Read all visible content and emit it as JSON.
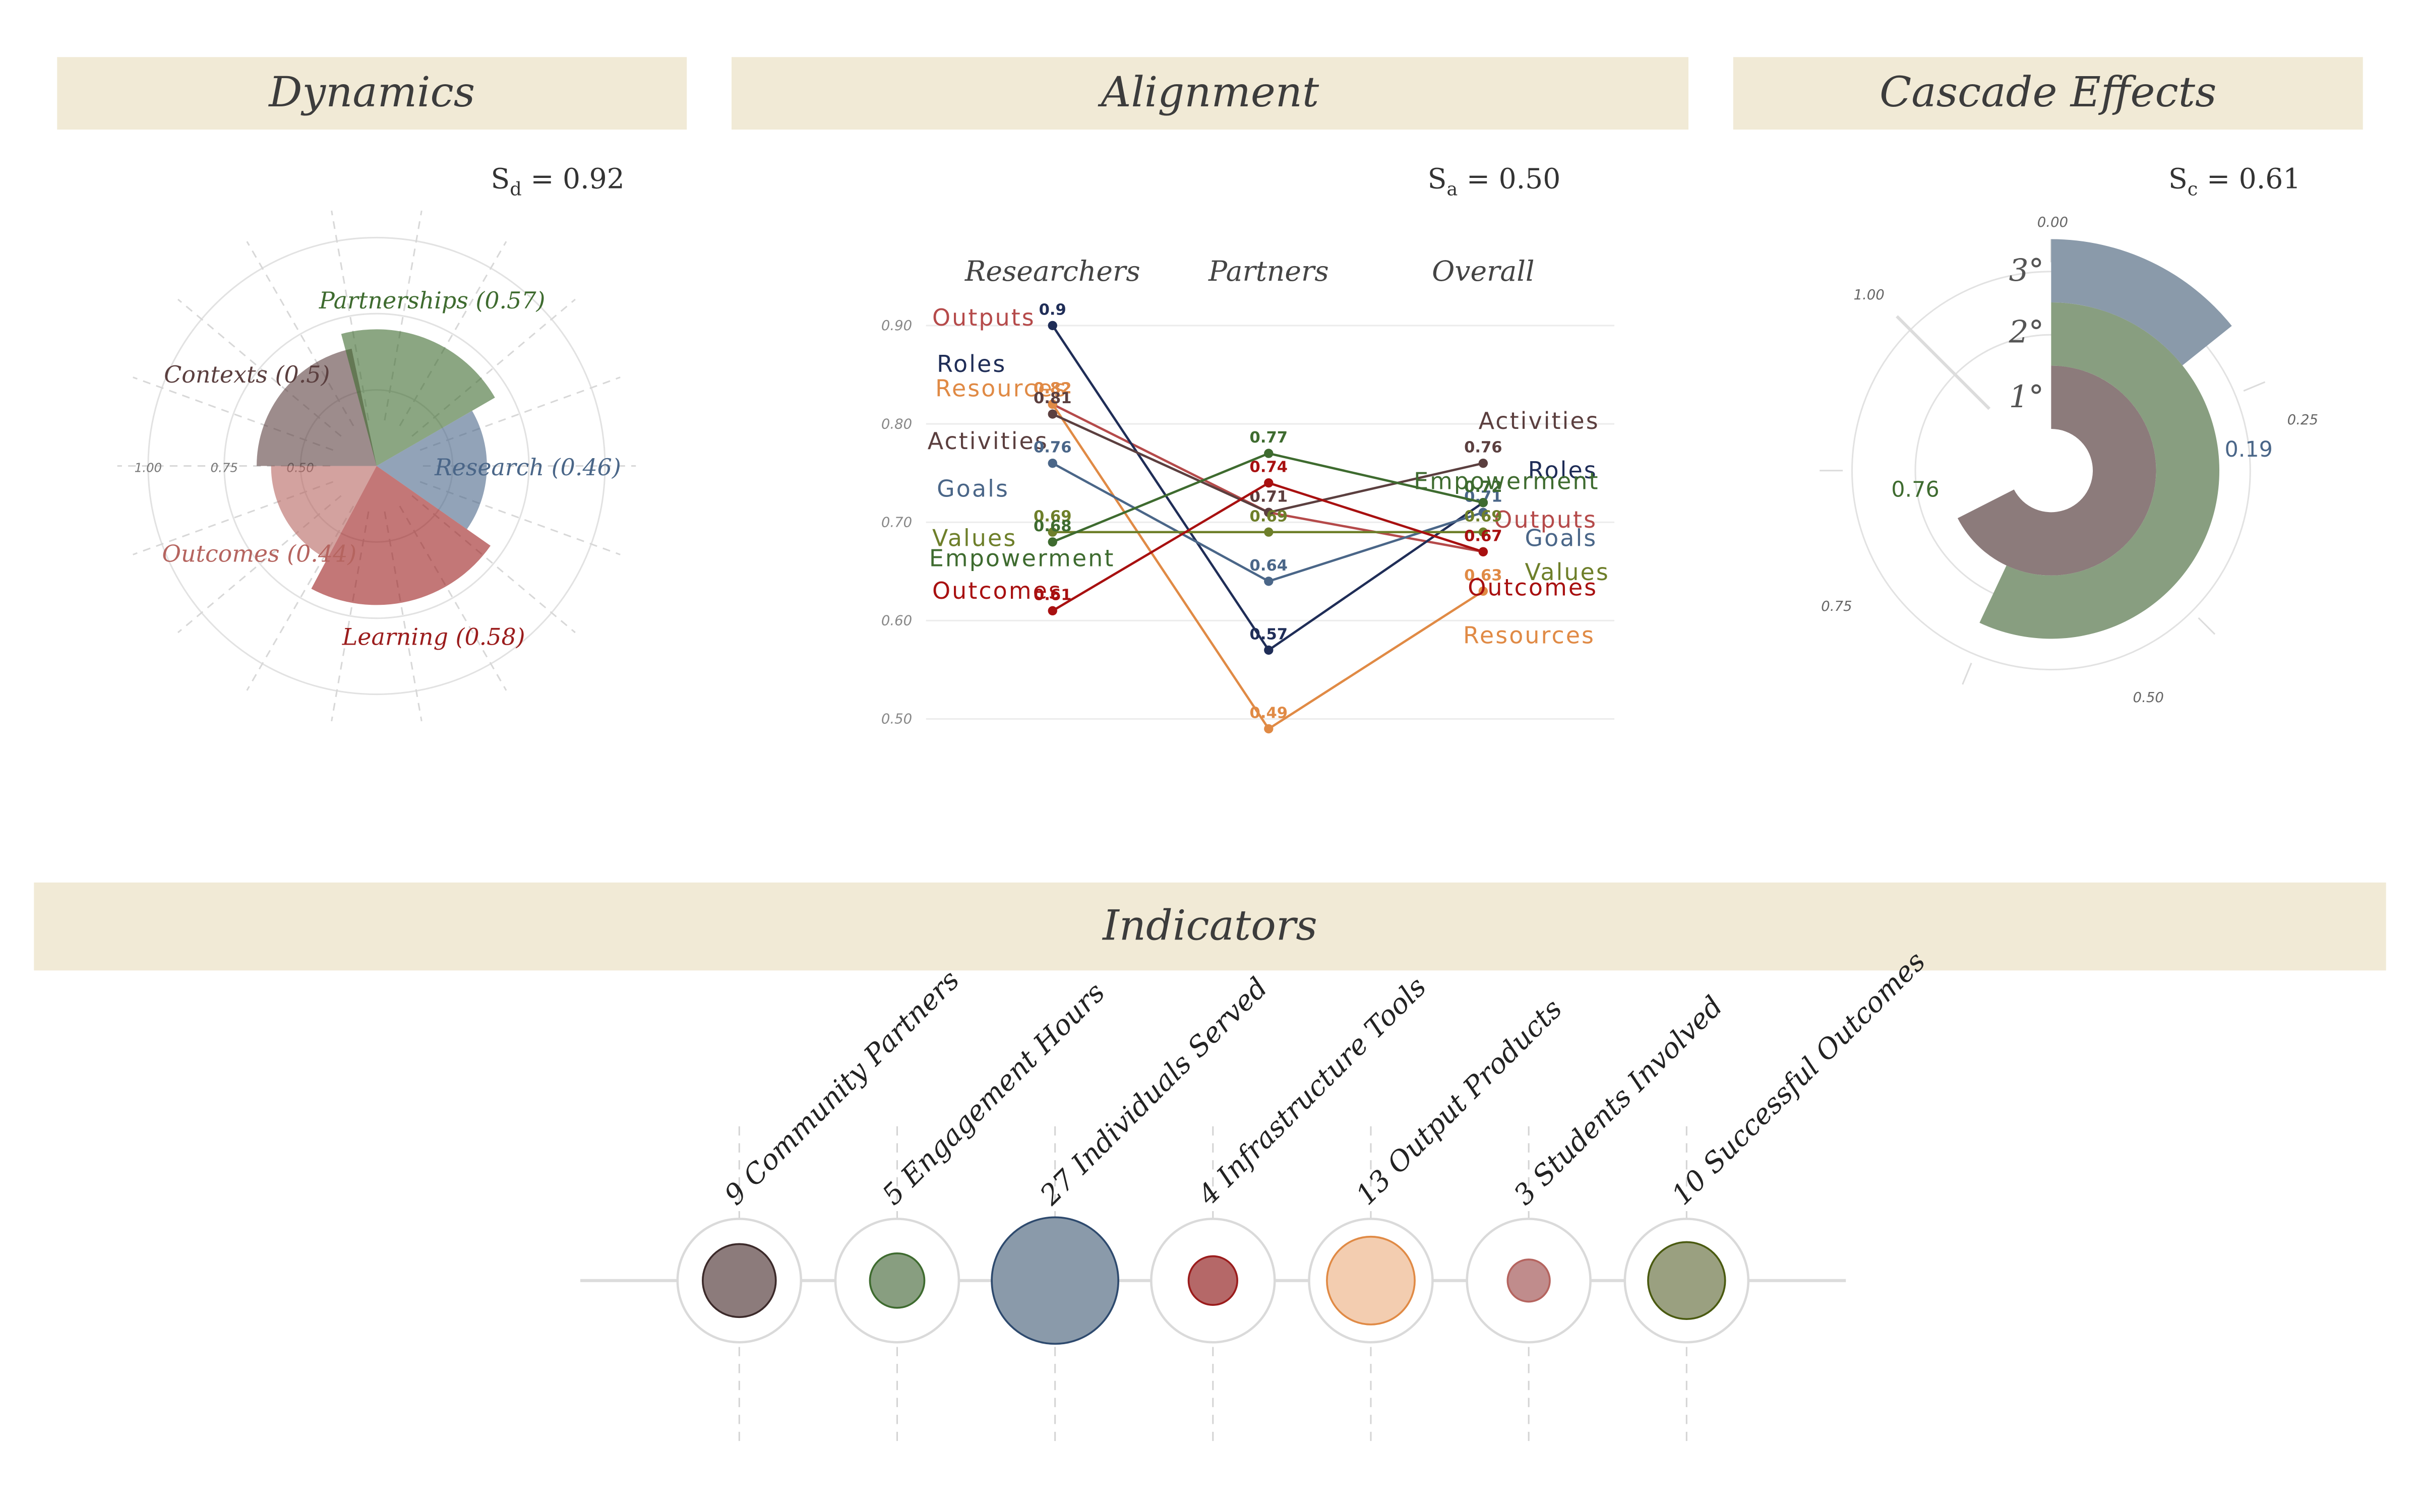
{
  "panels": {
    "dynamics": {
      "title": "Dynamics",
      "score_symbol": "S",
      "score_sub": "d",
      "score_value": "= 0.92"
    },
    "alignment": {
      "title": "Alignment",
      "score_symbol": "S",
      "score_sub": "a",
      "score_value": "= 0.50"
    },
    "cascade": {
      "title": "Cascade Effects",
      "score_symbol": "S",
      "score_sub": "c",
      "score_value": "= 0.61"
    },
    "indicators": {
      "title": "Indicators"
    }
  },
  "colors": {
    "header_bg": "#f1ead6",
    "Contexts": "#5b3f3f",
    "Partnerships": "#3e6b2f",
    "Research": "#4a6688",
    "Learning": "#9b1c1c",
    "Outcomes": "#b5645f",
    "Roles": "#1f2d57",
    "Resources": "#e08a45",
    "Activities": "#5b3f3f",
    "Goals": "#4a6688",
    "Values": "#6e7f2a",
    "Empowerment": "#3e6b2f",
    "Outputs": "#b54a4a",
    "Outcomes_line": "#a81010"
  },
  "chart_data": [
    {
      "type": "polar-bar",
      "name": "dynamics",
      "categories": [
        "Contexts",
        "Partnerships",
        "Research",
        "Learning",
        "Outcomes"
      ],
      "values": [
        0.5,
        0.57,
        0.46,
        0.58,
        0.44
      ],
      "labels": [
        "Contexts (0.5)",
        "Partnerships (0.57)",
        "Research (0.46)",
        "Learning (0.58)",
        "Outcomes (0.44)"
      ],
      "radial_ticks": [
        "1.00",
        "0.75",
        "0.50"
      ],
      "rlim": [
        0,
        1
      ]
    },
    {
      "type": "line",
      "name": "alignment",
      "categories": [
        "Researchers",
        "Partners",
        "Overall"
      ],
      "ylim": [
        0.5,
        0.9
      ],
      "yticks": [
        "0.50",
        "0.60",
        "0.70",
        "0.80",
        "0.90"
      ],
      "series": [
        {
          "name": "Outputs",
          "values": [
            0.82,
            0.71,
            0.67
          ],
          "value_labels": [
            "0.82",
            "0.71",
            "0.67"
          ]
        },
        {
          "name": "Roles",
          "values": [
            0.9,
            0.57,
            0.72
          ],
          "value_labels": [
            "0.9",
            "0.57",
            "0.72"
          ]
        },
        {
          "name": "Resources",
          "values": [
            0.82,
            0.49,
            0.63
          ],
          "value_labels": [
            "0.82",
            "0.49",
            "0.63"
          ]
        },
        {
          "name": "Activities",
          "values": [
            0.81,
            0.71,
            0.76
          ],
          "value_labels": [
            "0.81",
            "0.71",
            "0.76"
          ]
        },
        {
          "name": "Goals",
          "values": [
            0.76,
            0.64,
            0.71
          ],
          "value_labels": [
            "0.76",
            "0.64",
            "0.71"
          ]
        },
        {
          "name": "Values",
          "values": [
            0.69,
            0.69,
            0.69
          ],
          "value_labels": [
            "0.69",
            "0.69",
            "0.69"
          ]
        },
        {
          "name": "Empowerment",
          "values": [
            0.68,
            0.77,
            0.72
          ],
          "value_labels": [
            "0.68",
            "0.77",
            "0.72"
          ]
        },
        {
          "name": "Outcomes",
          "values": [
            0.61,
            0.74,
            0.67
          ],
          "value_labels": [
            "0.61",
            "0.74",
            "0.67"
          ]
        }
      ]
    },
    {
      "type": "radial-bar",
      "name": "cascade",
      "categories": [
        "1°",
        "2°",
        "3°"
      ],
      "values": [
        0.9,
        0.76,
        0.19
      ],
      "value_labels": [
        "",
        "0.76",
        "0.19"
      ],
      "radial_ticks": [
        "0.00",
        "0.25",
        "0.50",
        "0.75",
        "1.00"
      ]
    },
    {
      "type": "bubble",
      "name": "indicators",
      "labels": [
        "9 Community Partners",
        "5 Engagement Hours",
        "27 Individuals Served",
        "4 Infrastructure Tools",
        "13 Output Products",
        "3 Students Involved",
        "10 Successful Outcomes"
      ],
      "values": [
        9,
        5,
        27,
        4,
        13,
        3,
        10
      ]
    }
  ]
}
